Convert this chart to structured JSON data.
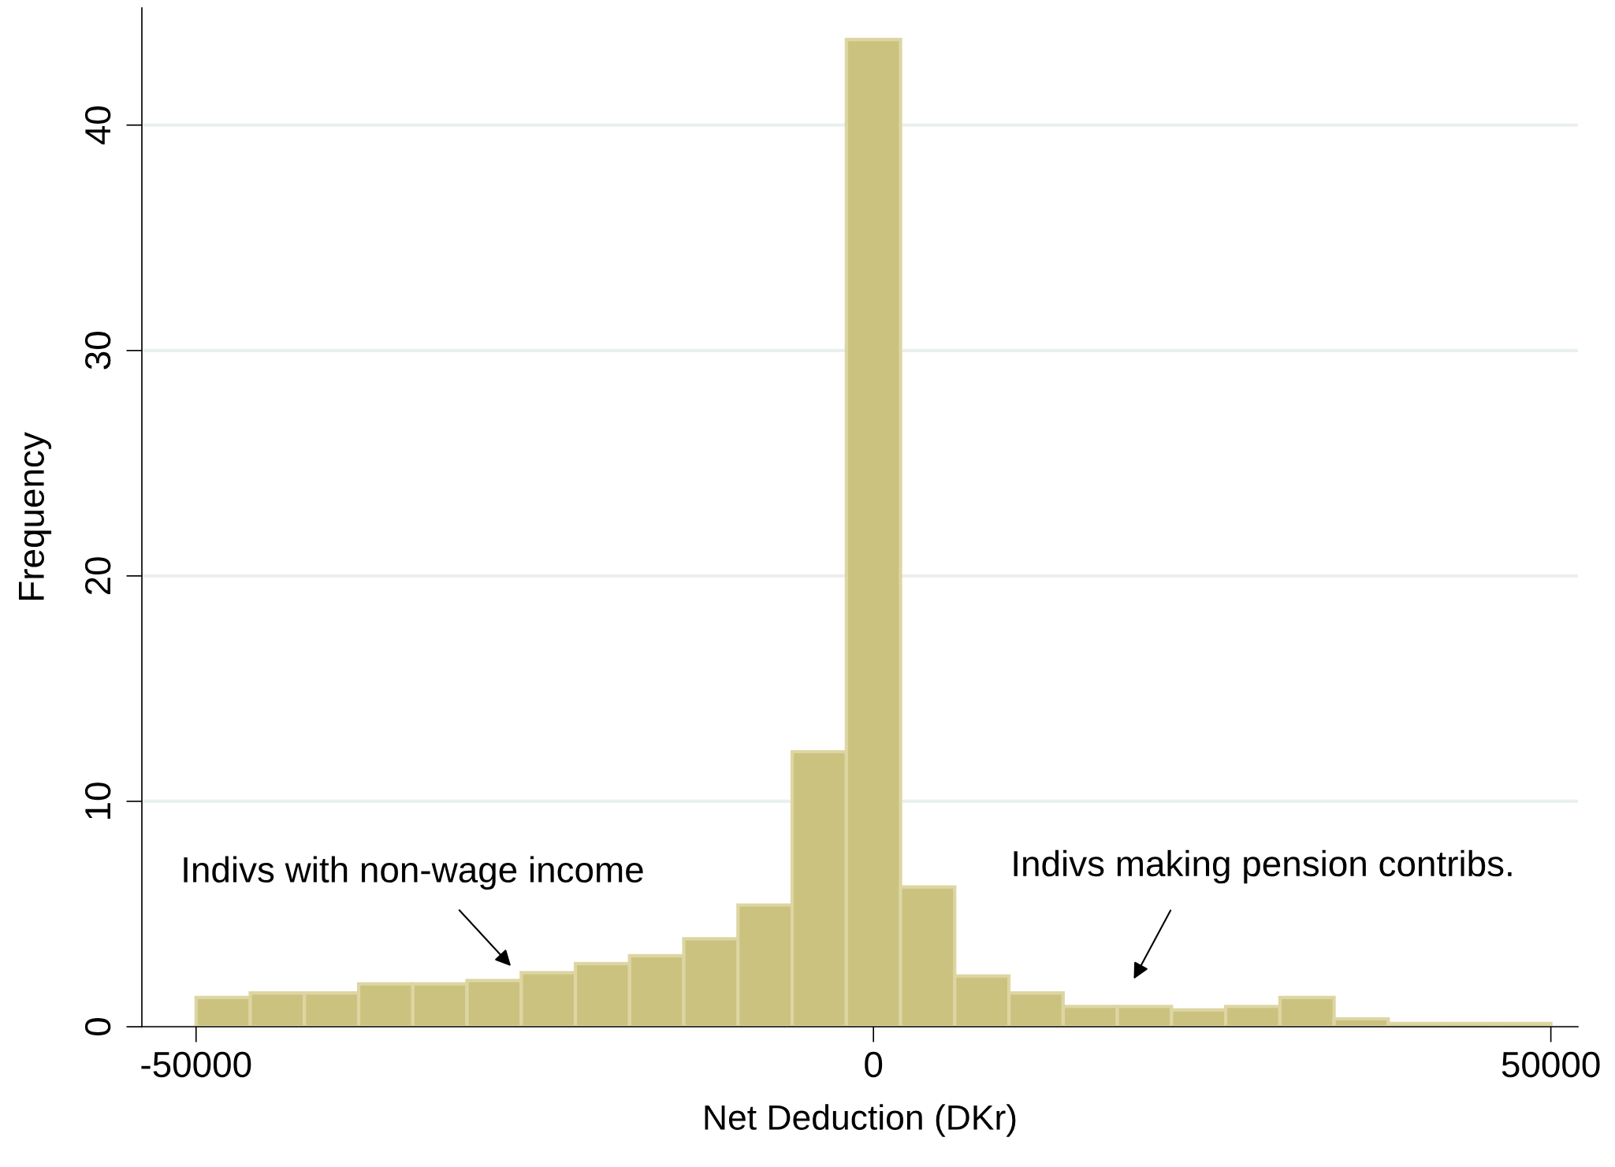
{
  "chart_data": {
    "type": "histogram",
    "xlabel": "Net Deduction (DKr)",
    "ylabel": "Frequency",
    "bins": [
      -50000,
      -46000,
      -42000,
      -38000,
      -34000,
      -30000,
      -26000,
      -22000,
      -18000,
      -14000,
      -10000,
      -6000,
      -2000,
      2000,
      6000,
      10000,
      14000,
      18000,
      22000,
      26000,
      30000,
      34000,
      38000,
      42000,
      46000,
      50000
    ],
    "values": [
      1.3,
      1.5,
      1.5,
      1.9,
      1.9,
      2.05,
      2.4,
      2.8,
      3.15,
      3.9,
      5.4,
      12.2,
      43.8,
      6.2,
      2.25,
      1.5,
      0.9,
      0.9,
      0.75,
      0.9,
      1.3,
      0.35,
      0.15,
      0.15,
      0.15
    ],
    "color": "#cbc280",
    "xlim": [
      -54000,
      52000
    ],
    "ylim": [
      0,
      45.2
    ],
    "xticks": [
      -50000,
      0,
      50000
    ],
    "yticks": [
      0,
      10,
      20,
      30,
      40
    ],
    "grid": "y",
    "annotations": [
      "Indivs with non-wage income",
      "Indivs making pension contribs."
    ]
  }
}
